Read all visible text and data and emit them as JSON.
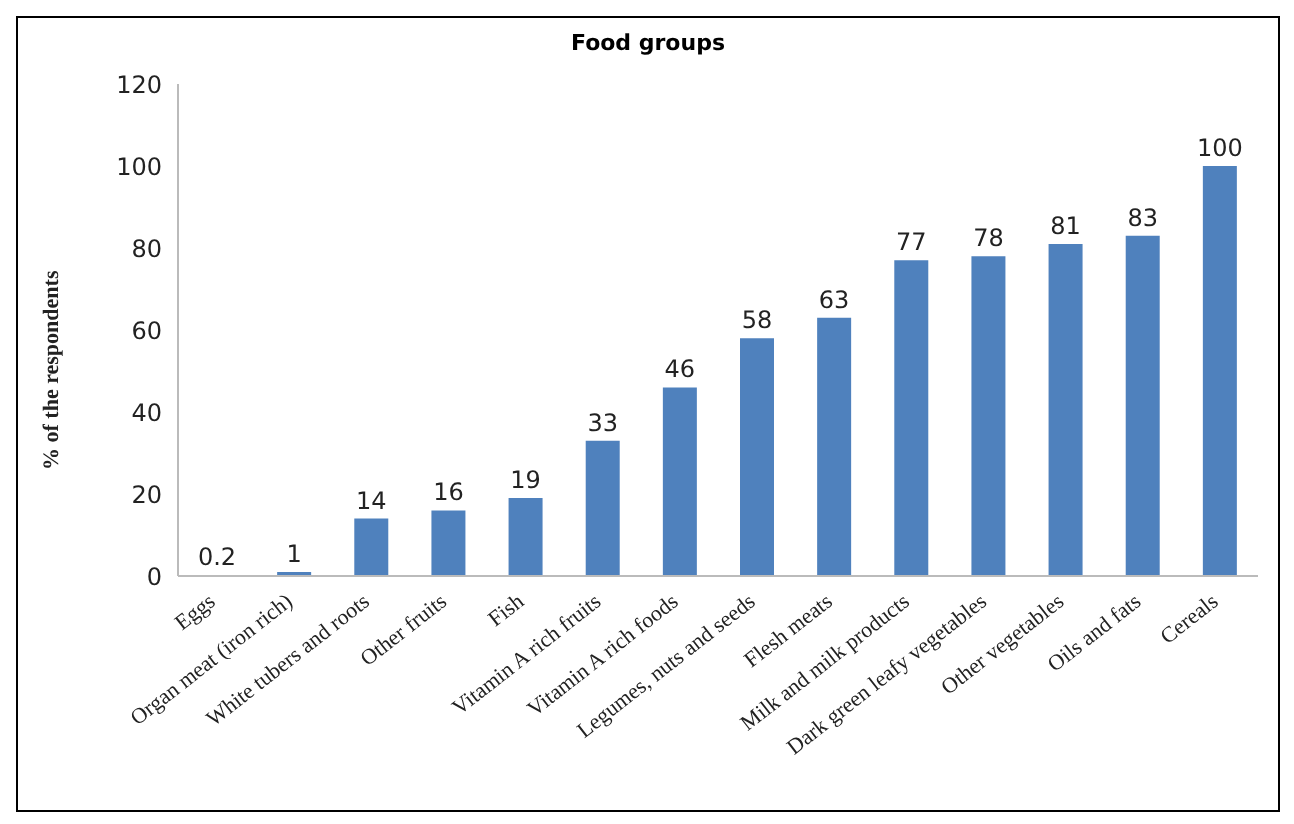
{
  "chart_data": {
    "type": "bar",
    "title": "Food groups",
    "ylabel": "% of the respondents",
    "categories": [
      "Eggs",
      "Organ meat (iron rich)",
      "White tubers and roots",
      "Other fruits",
      "Fish",
      "Vitamin A rich fruits",
      "Vitamin A rich foods",
      "Legumes, nuts and seeds",
      "Flesh meats",
      "Milk and milk products",
      "Dark green leafy vegetables",
      "Other vegetables",
      "Oils and fats",
      "Cereals"
    ],
    "values": [
      0.2,
      1,
      14,
      16,
      19,
      33,
      46,
      58,
      63,
      77,
      78,
      81,
      83,
      100
    ],
    "color": "#4f81bd",
    "ylim": [
      0,
      120
    ],
    "yticks": [
      0,
      20,
      40,
      60,
      80,
      100,
      120
    ],
    "grid": false,
    "legend": false,
    "data_labels": true
  }
}
